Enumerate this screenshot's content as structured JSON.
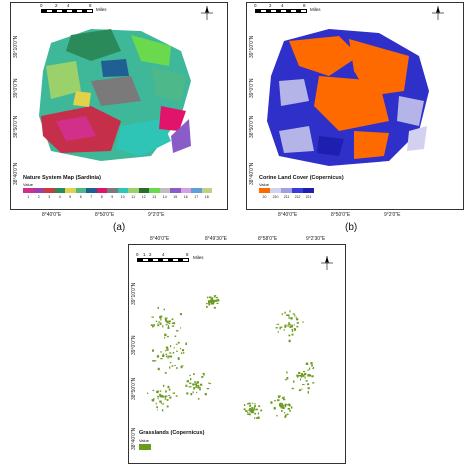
{
  "panels": {
    "a": {
      "caption": "(a)",
      "legend_title": "Nature System Map (Sardinia)",
      "legend_value_label": "Value",
      "legend_classes": [
        {
          "label": "1",
          "color": "#d12f8a"
        },
        {
          "label": "2",
          "color": "#9b3fb0"
        },
        {
          "label": "3",
          "color": "#c83c3c"
        },
        {
          "label": "4",
          "color": "#2a8a5a"
        },
        {
          "label": "5",
          "color": "#e0d24b"
        },
        {
          "label": "6",
          "color": "#4db98b"
        },
        {
          "label": "7",
          "color": "#1f5f93"
        },
        {
          "label": "8",
          "color": "#e2136a"
        },
        {
          "label": "9",
          "color": "#7a7a7a"
        },
        {
          "label": "10",
          "color": "#2ec4b6"
        },
        {
          "label": "11",
          "color": "#9bd16a"
        },
        {
          "label": "12",
          "color": "#2a6b2f"
        },
        {
          "label": "13",
          "color": "#6bd94d"
        },
        {
          "label": "14",
          "color": "#bfbfbf"
        },
        {
          "label": "15",
          "color": "#8a5cc7"
        },
        {
          "label": "16",
          "color": "#d7a1e0"
        },
        {
          "label": "17",
          "color": "#5f9fd7"
        },
        {
          "label": "18",
          "color": "#c3cf86"
        }
      ],
      "x_ticks": [
        "8°40'0\"E",
        "8°50'0\"E",
        "9°2'0\"E"
      ],
      "y_ticks": [
        "39°10'0\"N",
        "39°0'0\"N",
        "38°50'0\"N",
        "38°40'0\"N"
      ],
      "scale_labels": [
        "0",
        "1",
        "2",
        "4",
        "6",
        "8",
        "Miles"
      ]
    },
    "b": {
      "caption": "(b)",
      "legend_title": "Corine Land Cover (Copernicus)",
      "legend_value_label": "Value",
      "legend_classes": [
        {
          "label": "20",
          "color": "#ff6a00"
        },
        {
          "label": "210",
          "color": "#d2d2f0"
        },
        {
          "label": "211",
          "color": "#a0a0e0"
        },
        {
          "label": "212",
          "color": "#3a3ad6"
        },
        {
          "label": "221",
          "color": "#1e1eb0"
        }
      ],
      "x_ticks": [
        "8°40'0\"E",
        "8°50'0\"E",
        "9°2'0\"E"
      ],
      "y_ticks": [
        "39°10'0\"N",
        "39°0'0\"N",
        "38°50'0\"N",
        "38°40'0\"N"
      ],
      "scale_labels": [
        "0",
        "1",
        "2",
        "4",
        "6",
        "8",
        "Miles"
      ]
    },
    "c": {
      "caption": "",
      "legend_title": "Grasslands (Copernicus)",
      "legend_value_label": "Value",
      "legend_classes": [
        {
          "label": "",
          "color": "#6a9a1e"
        }
      ],
      "x_ticks": [
        "8°40'0\"E",
        "8°49'30\"E",
        "8°58'0\"E",
        "9°2'30\"E"
      ],
      "y_ticks": [
        "39°10'0\"N",
        "39°0'0\"N",
        "38°50'0\"N",
        "38°40'0\"N"
      ],
      "scale_labels": [
        "0",
        "1",
        "2",
        "4",
        "6",
        "8",
        "Miles"
      ]
    }
  },
  "colors": {
    "teal": "#3fb89a",
    "magenta": "#d12f8a",
    "red": "#c62f4a",
    "orange": "#ff6a00",
    "blue": "#2f2fc9",
    "lavender": "#b4b4e8",
    "grass": "#6a9a1e"
  }
}
